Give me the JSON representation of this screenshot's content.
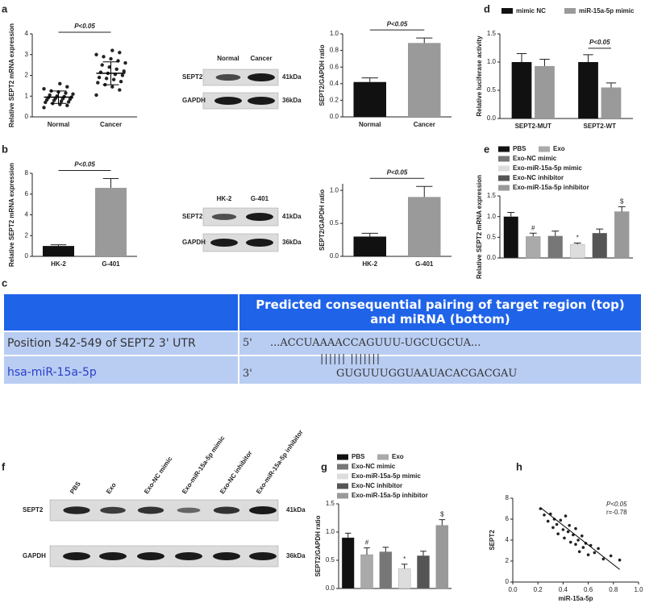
{
  "panels": [
    "a",
    "b",
    "c",
    "d",
    "e",
    "f",
    "g",
    "h"
  ],
  "chart_data": [
    {
      "type": "dot",
      "y_label": "Relative SEPT2 mRNA expression",
      "categories": [
        "Normal",
        "Cancer"
      ],
      "points": [
        [
          0.45,
          0.55,
          0.6,
          0.65,
          0.7,
          0.72,
          0.75,
          0.8,
          0.82,
          0.85,
          0.88,
          0.9,
          0.92,
          0.95,
          0.98,
          1.0,
          1.05,
          1.1,
          1.15,
          1.2,
          1.25,
          1.35,
          1.45,
          1.6
        ],
        [
          1.05,
          1.3,
          1.45,
          1.55,
          1.65,
          1.7,
          1.8,
          1.85,
          1.9,
          2.0,
          2.05,
          2.1,
          2.15,
          2.2,
          2.3,
          2.4,
          2.5,
          2.6,
          2.7,
          2.8,
          2.9,
          3.0,
          3.1,
          3.2
        ]
      ],
      "values": [
        0.95,
        2.1
      ],
      "errors": [
        0.3,
        0.55
      ],
      "color": "#222222",
      "ylim": [
        0,
        4
      ],
      "yticks": [
        0,
        1,
        2,
        3,
        4
      ],
      "annotation": "P<0.05"
    },
    {
      "type": "bar",
      "y_label": "SEPT2/GAPDH ratio",
      "categories": [
        "Normal",
        "Cancer"
      ],
      "values": [
        0.42,
        0.89
      ],
      "errors": [
        0.05,
        0.06
      ],
      "colors": [
        "#111111",
        "#9a9a9a"
      ],
      "ylim": [
        0,
        1
      ],
      "yticks": [
        {
          "value": 0,
          "label": "0.0"
        },
        0.2,
        0.4,
        0.6,
        0.8,
        {
          "value": 1,
          "label": "1.0"
        }
      ],
      "annotation": "P<0.05"
    },
    {
      "type": "grouped_bar",
      "y_label": "Relative luciferase activity",
      "categories": [
        "SEPT2-MUT",
        "SEPT2-WT"
      ],
      "series": [
        {
          "name": "mimic NC",
          "color": "#111111",
          "values": [
            1.0,
            1.0
          ],
          "errors": [
            0.15,
            0.13
          ]
        },
        {
          "name": "miR-15a-5p mimic",
          "color": "#9a9a9a",
          "values": [
            0.93,
            0.55
          ],
          "errors": [
            0.12,
            0.08
          ]
        }
      ],
      "ylim": [
        0,
        1.5
      ],
      "yticks": [
        {
          "value": 0,
          "label": "0.0"
        },
        0.5,
        {
          "value": 1,
          "label": "1.0"
        },
        1.5
      ],
      "annotation": "P<0.05"
    },
    {
      "type": "bar",
      "y_label": "Relative SEPT2 mRNA expression",
      "categories": [
        "HK-2",
        "G-401"
      ],
      "values": [
        1.0,
        6.6
      ],
      "errors": [
        0.12,
        0.9
      ],
      "colors": [
        "#111111",
        "#9a9a9a"
      ],
      "ylim": [
        0,
        8
      ],
      "yticks": [
        0,
        2,
        4,
        6,
        8
      ],
      "annotation": "P<0.05"
    },
    {
      "type": "bar",
      "y_label": "SEPT2/GAPDH ratio",
      "categories": [
        "HK-2",
        "G-401"
      ],
      "values": [
        0.3,
        0.9
      ],
      "errors": [
        0.05,
        0.16
      ],
      "colors": [
        "#111111",
        "#9a9a9a"
      ],
      "ylim": [
        0,
        1.1
      ],
      "yticks": [
        {
          "value": 0,
          "label": "0.0"
        },
        0.5,
        {
          "value": 1,
          "label": "1.0"
        }
      ],
      "annotation": "P<0.05"
    },
    {
      "type": "series_bar",
      "y_label": "Relative SEPT2 mRNA expression",
      "series": [
        {
          "name": "PBS",
          "color": "#111111",
          "values": [
            1.0
          ],
          "errors": [
            0.1
          ]
        },
        {
          "name": "Exo",
          "color": "#aaaaaa",
          "values": [
            0.52
          ],
          "errors": [
            0.08
          ]
        },
        {
          "name": "Exo-NC mimic",
          "color": "#777777",
          "values": [
            0.53
          ],
          "errors": [
            0.12
          ]
        },
        {
          "name": "Exo-miR-15a-5p mimic",
          "color": "#dddddd",
          "values": [
            0.33
          ],
          "errors": [
            0.03
          ]
        },
        {
          "name": "Exo-NC inhibitor",
          "color": "#555555",
          "values": [
            0.6
          ],
          "errors": [
            0.1
          ]
        },
        {
          "name": "Exo-miR-15a-5p inhibitor",
          "color": "#999999",
          "values": [
            1.12
          ],
          "errors": [
            0.12
          ]
        }
      ],
      "annotations": [
        null,
        "#",
        null,
        "*",
        null,
        "$"
      ],
      "ylim": [
        0,
        1.5
      ],
      "yticks": [
        {
          "value": 0,
          "label": "0.0"
        },
        0.5,
        {
          "value": 1,
          "label": "1.0"
        },
        1.5
      ]
    },
    {
      "type": "series_bar",
      "y_label": "SEPT2/GAPDH ratio",
      "series": [
        {
          "name": "PBS",
          "color": "#111111",
          "values": [
            0.9
          ],
          "errors": [
            0.08
          ]
        },
        {
          "name": "Exo",
          "color": "#aaaaaa",
          "values": [
            0.6
          ],
          "errors": [
            0.12
          ]
        },
        {
          "name": "Exo-NC mimic",
          "color": "#777777",
          "values": [
            0.65
          ],
          "errors": [
            0.08
          ]
        },
        {
          "name": "Exo-miR-15a-5p mimic",
          "color": "#dddddd",
          "values": [
            0.35
          ],
          "errors": [
            0.08
          ]
        },
        {
          "name": "Exo-NC inhibitor",
          "color": "#555555",
          "values": [
            0.58
          ],
          "errors": [
            0.08
          ]
        },
        {
          "name": "Exo-miR-15a-5p inhibitor",
          "color": "#999999",
          "values": [
            1.12
          ],
          "errors": [
            0.1
          ]
        }
      ],
      "annotations": [
        null,
        "#",
        null,
        "*",
        null,
        "$"
      ],
      "ylim": [
        0,
        1.5
      ],
      "yticks": [
        {
          "value": 0,
          "label": "0.0"
        },
        0.5,
        {
          "value": 1,
          "label": "1.0"
        },
        1.5
      ]
    },
    {
      "type": "scatter",
      "x_label": "miR-15a-5p",
      "y_label": "SEPT2",
      "color": "#222222",
      "x": [
        0.22,
        0.25,
        0.28,
        0.3,
        0.32,
        0.33,
        0.35,
        0.36,
        0.38,
        0.4,
        0.41,
        0.42,
        0.44,
        0.45,
        0.46,
        0.48,
        0.5,
        0.5,
        0.52,
        0.53,
        0.55,
        0.56,
        0.58,
        0.6,
        0.62,
        0.65,
        0.68,
        0.72,
        0.78,
        0.85
      ],
      "y": [
        7.0,
        6.4,
        5.8,
        6.5,
        5.2,
        6.0,
        5.5,
        4.6,
        5.9,
        5.0,
        4.2,
        6.3,
        4.8,
        5.4,
        3.8,
        4.5,
        5.1,
        3.6,
        4.0,
        2.9,
        4.4,
        3.3,
        3.7,
        2.6,
        3.5,
        2.8,
        3.2,
        2.2,
        2.5,
        2.1
      ],
      "fit": {
        "x": [
          0.22,
          0.85
        ],
        "y": [
          7.1,
          1.2
        ]
      },
      "xlim": [
        0,
        1
      ],
      "xticks": [
        {
          "value": 0,
          "label": "0.0"
        },
        0.2,
        0.4,
        0.6,
        0.8,
        {
          "value": 1,
          "label": "1.0"
        }
      ],
      "ylim": [
        0,
        8
      ],
      "yticks": [
        0,
        2,
        4,
        6,
        8
      ],
      "annotations": [
        "P<0.05",
        "r=-0.78"
      ]
    }
  ],
  "blots": [
    {
      "lanes": [
        "Normal",
        "Cancer"
      ],
      "rows": [
        "SEPT2",
        "GAPDH"
      ],
      "sizes": [
        "41kDa",
        "36kDa"
      ]
    },
    {
      "lanes": [
        "HK-2",
        "G-401"
      ],
      "rows": [
        "SEPT2",
        "GAPDH"
      ],
      "sizes": [
        "41kDa",
        "36kDa"
      ]
    },
    {
      "lanes": [
        "PBS",
        "Exo",
        "Exo-NC mimic",
        "Exo-miR-15a-5p mimic",
        "Exo-NC inhibitor",
        "Exo-miR-15a-5p inhibitor"
      ],
      "rows": [
        "SEPT2",
        "GAPDH"
      ],
      "sizes": [
        "41kDa",
        "36kDa"
      ]
    }
  ],
  "table": {
    "header": "Predicted consequential pairing of target region (top) and miRNA (bottom)",
    "rows": [
      [
        "Position 542-549 of SEPT2 3' UTR",
        "5'",
        "...ACCUAAAACCAGUUU-UGCUGCUA..."
      ],
      [
        "hsa-miR-15a-5p",
        "3'",
        "GUGUUUGGUAAUACACGACGAU"
      ]
    ],
    "pairing": "||||||        |||||||"
  }
}
